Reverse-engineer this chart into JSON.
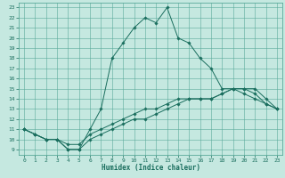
{
  "xlabel": "Humidex (Indice chaleur)",
  "ylabel": "",
  "background_color": "#c5e8e0",
  "grid_color": "#5aaa9a",
  "line_color": "#1a6e5e",
  "xlim": [
    -0.5,
    23.5
  ],
  "ylim": [
    8.5,
    23.5
  ],
  "xticks": [
    0,
    1,
    2,
    3,
    4,
    5,
    6,
    7,
    8,
    9,
    10,
    11,
    12,
    13,
    14,
    15,
    16,
    17,
    18,
    19,
    20,
    21,
    22,
    23
  ],
  "yticks": [
    9,
    10,
    11,
    12,
    13,
    14,
    15,
    16,
    17,
    18,
    19,
    20,
    21,
    22,
    23
  ],
  "line1_x": [
    0,
    1,
    2,
    3,
    4,
    5,
    6,
    7,
    8,
    9,
    10,
    11,
    12,
    13,
    14,
    15,
    16,
    17,
    18,
    19,
    20,
    21,
    22,
    23
  ],
  "line1_y": [
    11,
    10.5,
    10,
    10,
    9,
    9,
    11,
    13,
    18,
    19.5,
    21,
    22,
    21.5,
    23,
    20,
    19.5,
    18,
    17,
    15,
    15,
    15,
    14.5,
    13.5,
    13
  ],
  "line2_x": [
    0,
    1,
    2,
    3,
    4,
    5,
    6,
    7,
    8,
    9,
    10,
    11,
    12,
    13,
    14,
    15,
    16,
    17,
    18,
    19,
    20,
    21,
    22,
    23
  ],
  "line2_y": [
    11,
    10.5,
    10,
    10,
    9.5,
    9.5,
    10.5,
    11,
    11.5,
    12,
    12.5,
    13,
    13,
    13.5,
    14,
    14,
    14,
    14,
    14.5,
    15,
    15,
    15,
    14,
    13
  ],
  "line3_x": [
    0,
    1,
    2,
    3,
    4,
    5,
    6,
    7,
    8,
    9,
    10,
    11,
    12,
    13,
    14,
    15,
    16,
    17,
    18,
    19,
    20,
    21,
    22,
    23
  ],
  "line3_y": [
    11,
    10.5,
    10,
    10,
    9,
    9,
    10,
    10.5,
    11,
    11.5,
    12,
    12,
    12.5,
    13,
    13.5,
    14,
    14,
    14,
    14.5,
    15,
    14.5,
    14,
    13.5,
    13
  ],
  "tick_fontsize": 4.5,
  "xlabel_fontsize": 5.5
}
